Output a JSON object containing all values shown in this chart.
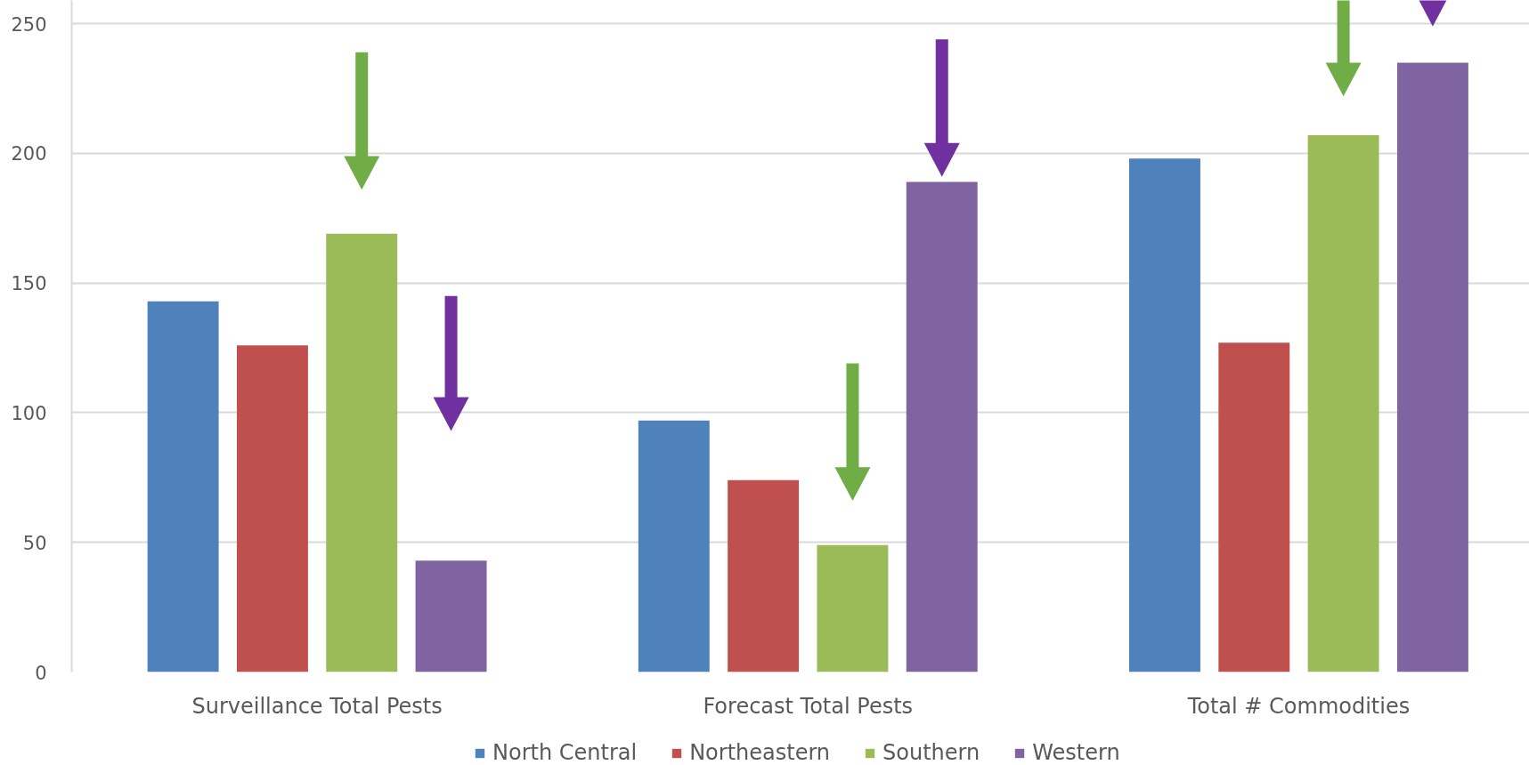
{
  "chart_data": {
    "type": "bar",
    "categories": [
      "Surveillance Total Pests",
      "Forecast Total Pests",
      "Total # Commodities"
    ],
    "series": [
      {
        "name": "North Central",
        "color": "#4f81bd",
        "values": [
          143,
          97,
          198
        ]
      },
      {
        "name": "Northeastern",
        "color": "#c0504d",
        "values": [
          126,
          74,
          127
        ]
      },
      {
        "name": "Southern",
        "color": "#9bbb59",
        "values": [
          169,
          49,
          207
        ]
      },
      {
        "name": "Western",
        "color": "#8064a2",
        "values": [
          43,
          189,
          235
        ]
      }
    ],
    "ylim": [
      0,
      259
    ],
    "yticks": [
      0,
      50,
      100,
      150,
      200,
      250
    ],
    "grid": "y",
    "legend": "bottom"
  }
}
